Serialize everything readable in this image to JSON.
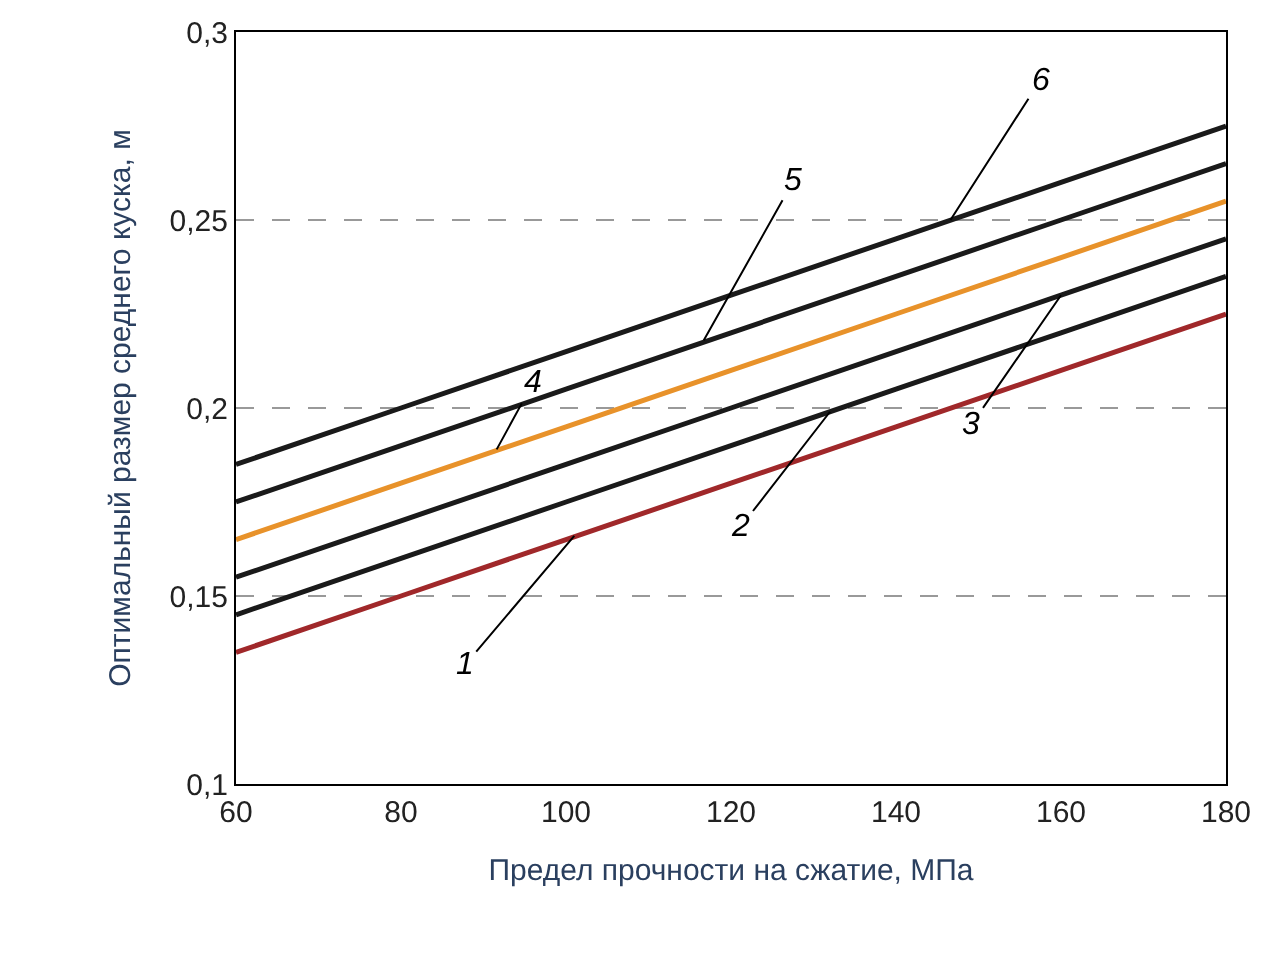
{
  "chart_data": {
    "type": "line",
    "xlabel": "Предел прочности на сжатие, МПа",
    "ylabel": "Оптимальный размер среднего куска, м",
    "x": [
      60,
      80,
      100,
      120,
      140,
      160,
      180
    ],
    "series": [
      {
        "color": "#a0282a",
        "values": [
          0.135,
          0.15,
          0.165,
          0.18,
          0.195,
          0.21,
          0.225
        ]
      },
      {
        "color": "#1a1a1a",
        "values": [
          0.145,
          0.16,
          0.175,
          0.19,
          0.205,
          0.22,
          0.235
        ]
      },
      {
        "color": "#1a1a1a",
        "values": [
          0.155,
          0.17,
          0.185,
          0.2,
          0.215,
          0.23,
          0.245
        ]
      },
      {
        "color": "#e8922a",
        "values": [
          0.165,
          0.18,
          0.195,
          0.21,
          0.225,
          0.24,
          0.255
        ]
      },
      {
        "color": "#1a1a1a",
        "values": [
          0.175,
          0.19,
          0.205,
          0.22,
          0.235,
          0.25,
          0.265
        ]
      },
      {
        "color": "#1a1a1a",
        "values": [
          0.185,
          0.2,
          0.215,
          0.23,
          0.245,
          0.26,
          0.275
        ]
      }
    ],
    "annotations": [
      {
        "text": "1",
        "x": 101,
        "y": 0.166
      },
      {
        "text": "2",
        "x": 132,
        "y": 0.199
      },
      {
        "text": "3",
        "x": 160,
        "y": 0.23
      },
      {
        "text": "4",
        "x": 91.6,
        "y": 0.189
      },
      {
        "text": "5",
        "x": 116.7,
        "y": 0.218
      },
      {
        "text": "6",
        "x": 146.6,
        "y": 0.25
      }
    ],
    "xlim": [
      60,
      180
    ],
    "xticks": [
      60,
      80,
      100,
      120,
      140,
      160,
      180
    ],
    "ylim": [
      0.1,
      0.3
    ],
    "yticks": [
      {
        "value": 0.1,
        "label": "0,1"
      },
      {
        "value": 0.15,
        "label": "0,15"
      },
      {
        "value": 0.2,
        "label": "0,2"
      },
      {
        "value": 0.25,
        "label": "0,25"
      },
      {
        "value": 0.3,
        "label": "0,3"
      }
    ],
    "grid": "y",
    "legend": false,
    "marker": "none",
    "line_style": "solid"
  }
}
